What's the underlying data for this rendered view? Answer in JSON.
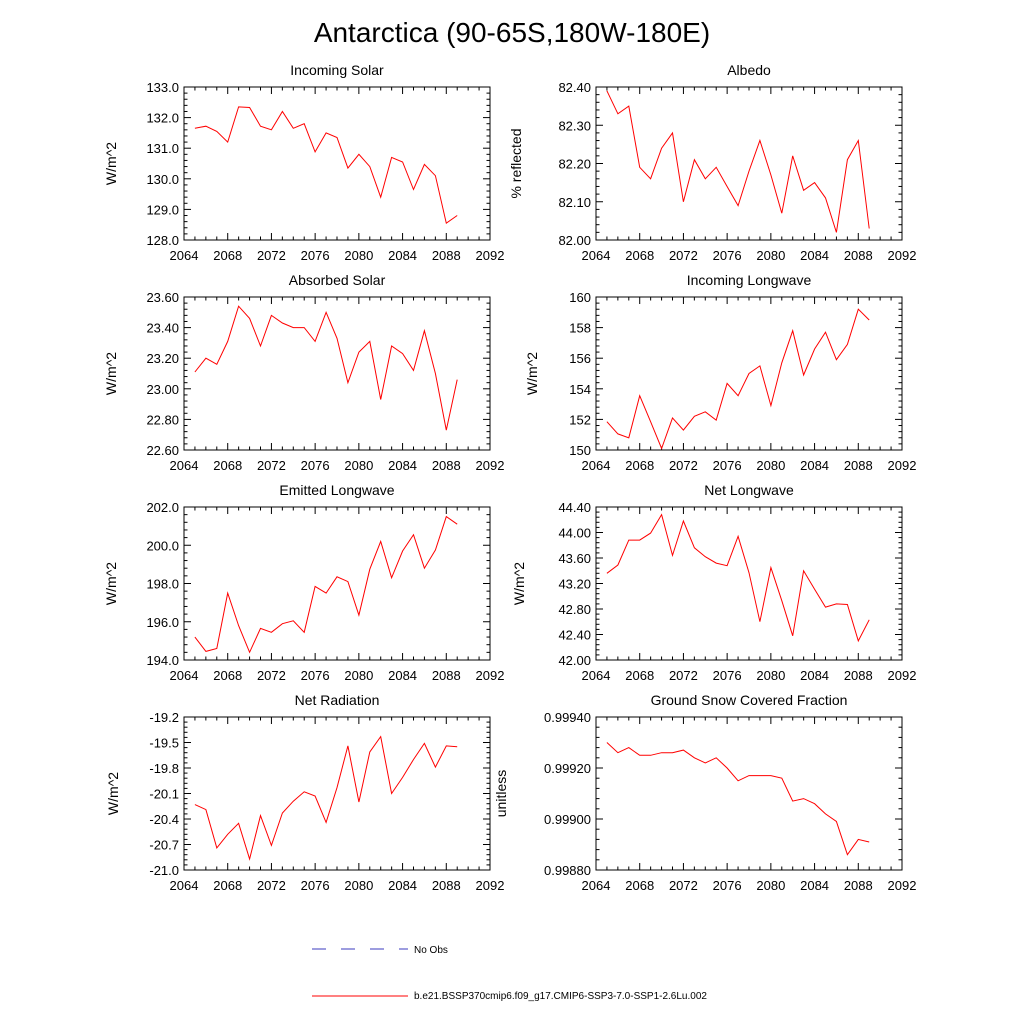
{
  "page_title": "Antarctica (90-65S,180W-180E)",
  "legend": {
    "obs_label": "No Obs",
    "model_label": "b.e21.BSSP370cmip6.f09_g17.CMIP6-SSP3-7.0-SSP1-2.6Lu.002",
    "obs_color": "#3b3bbf",
    "model_color": "#ff0000"
  },
  "chart_data": [
    {
      "type": "line",
      "title": "Incoming Solar",
      "ylabel": "W/m^2",
      "xlim": [
        2064,
        2092
      ],
      "xticks": [
        2064,
        2068,
        2072,
        2076,
        2080,
        2084,
        2088,
        2092
      ],
      "xtick_labels": [
        "2064",
        "2068",
        "2072",
        "2076",
        "2080",
        "2084",
        "2088",
        "2092"
      ],
      "ylim": [
        128.0,
        133.0
      ],
      "yticks": [
        128.0,
        129.0,
        130.0,
        131.0,
        132.0,
        133.0
      ],
      "ytick_labels": [
        "128.0",
        "129.0",
        "130.0",
        "131.0",
        "132.0",
        "133.0"
      ],
      "x": [
        2065,
        2066,
        2067,
        2068,
        2069,
        2070,
        2071,
        2072,
        2073,
        2074,
        2075,
        2076,
        2077,
        2078,
        2079,
        2080,
        2081,
        2082,
        2083,
        2084,
        2085,
        2086,
        2087,
        2088,
        2089
      ],
      "series": [
        {
          "values": [
            131.65,
            131.72,
            131.55,
            131.2,
            132.35,
            132.33,
            131.72,
            131.6,
            132.2,
            131.65,
            131.8,
            130.88,
            131.5,
            131.35,
            130.35,
            130.8,
            130.4,
            129.4,
            130.7,
            130.55,
            129.65,
            130.47,
            130.1,
            128.55,
            128.8
          ]
        }
      ]
    },
    {
      "type": "line",
      "title": "Albedo",
      "ylabel": "% reflected",
      "xlim": [
        2064,
        2092
      ],
      "xticks": [
        2064,
        2068,
        2072,
        2076,
        2080,
        2084,
        2088,
        2092
      ],
      "xtick_labels": [
        "2064",
        "2068",
        "2072",
        "2076",
        "2080",
        "2084",
        "2088",
        "2092"
      ],
      "ylim": [
        82.0,
        82.4
      ],
      "yticks": [
        82.0,
        82.1,
        82.2,
        82.3,
        82.4
      ],
      "ytick_labels": [
        "82.00",
        "82.10",
        "82.20",
        "82.30",
        "82.40"
      ],
      "x": [
        2065,
        2066,
        2067,
        2068,
        2069,
        2070,
        2071,
        2072,
        2073,
        2074,
        2075,
        2076,
        2077,
        2078,
        2079,
        2080,
        2081,
        2082,
        2083,
        2084,
        2085,
        2086,
        2087,
        2088,
        2089
      ],
      "series": [
        {
          "values": [
            82.39,
            82.33,
            82.35,
            82.19,
            82.16,
            82.24,
            82.28,
            82.1,
            82.21,
            82.16,
            82.19,
            82.14,
            82.09,
            82.18,
            82.26,
            82.17,
            82.07,
            82.22,
            82.13,
            82.15,
            82.11,
            82.02,
            82.21,
            82.26,
            82.03
          ]
        }
      ]
    },
    {
      "type": "line",
      "title": "Absorbed Solar",
      "ylabel": "W/m^2",
      "xlim": [
        2064,
        2092
      ],
      "xticks": [
        2064,
        2068,
        2072,
        2076,
        2080,
        2084,
        2088,
        2092
      ],
      "xtick_labels": [
        "2064",
        "2068",
        "2072",
        "2076",
        "2080",
        "2084",
        "2088",
        "2092"
      ],
      "ylim": [
        22.6,
        23.6
      ],
      "yticks": [
        22.6,
        22.8,
        23.0,
        23.2,
        23.4,
        23.6
      ],
      "ytick_labels": [
        "22.60",
        "22.80",
        "23.00",
        "23.20",
        "23.40",
        "23.60"
      ],
      "x": [
        2065,
        2066,
        2067,
        2068,
        2069,
        2070,
        2071,
        2072,
        2073,
        2074,
        2075,
        2076,
        2077,
        2078,
        2079,
        2080,
        2081,
        2082,
        2083,
        2084,
        2085,
        2086,
        2087,
        2088,
        2089
      ],
      "series": [
        {
          "values": [
            23.11,
            23.2,
            23.16,
            23.31,
            23.54,
            23.46,
            23.28,
            23.48,
            23.43,
            23.4,
            23.4,
            23.31,
            23.5,
            23.33,
            23.04,
            23.24,
            23.31,
            22.93,
            23.28,
            23.23,
            23.12,
            23.38,
            23.1,
            22.73,
            23.06
          ]
        }
      ]
    },
    {
      "type": "line",
      "title": "Incoming Longwave",
      "ylabel": "W/m^2",
      "xlim": [
        2064,
        2092
      ],
      "xticks": [
        2064,
        2068,
        2072,
        2076,
        2080,
        2084,
        2088,
        2092
      ],
      "xtick_labels": [
        "2064",
        "2068",
        "2072",
        "2076",
        "2080",
        "2084",
        "2088",
        "2092"
      ],
      "ylim": [
        150,
        160
      ],
      "yticks": [
        150,
        152,
        154,
        156,
        158,
        160
      ],
      "ytick_labels": [
        "150",
        "152",
        "154",
        "156",
        "158",
        "160"
      ],
      "x": [
        2065,
        2066,
        2067,
        2068,
        2069,
        2070,
        2071,
        2072,
        2073,
        2074,
        2075,
        2076,
        2077,
        2078,
        2079,
        2080,
        2081,
        2082,
        2083,
        2084,
        2085,
        2086,
        2087,
        2088,
        2089
      ],
      "series": [
        {
          "values": [
            151.85,
            151.05,
            150.8,
            153.55,
            151.85,
            150.1,
            152.1,
            151.3,
            152.2,
            152.5,
            151.95,
            154.35,
            153.55,
            155.0,
            155.5,
            152.9,
            155.7,
            157.8,
            154.9,
            156.6,
            157.7,
            155.9,
            156.9,
            159.2,
            158.5
          ]
        }
      ]
    },
    {
      "type": "line",
      "title": "Emitted Longwave",
      "ylabel": "W/m^2",
      "xlim": [
        2064,
        2092
      ],
      "xticks": [
        2064,
        2068,
        2072,
        2076,
        2080,
        2084,
        2088,
        2092
      ],
      "xtick_labels": [
        "2064",
        "2068",
        "2072",
        "2076",
        "2080",
        "2084",
        "2088",
        "2092"
      ],
      "ylim": [
        194.0,
        202.0
      ],
      "yticks": [
        194.0,
        196.0,
        198.0,
        200.0,
        202.0
      ],
      "ytick_labels": [
        "194.0",
        "196.0",
        "198.0",
        "200.0",
        "202.0"
      ],
      "x": [
        2065,
        2066,
        2067,
        2068,
        2069,
        2070,
        2071,
        2072,
        2073,
        2074,
        2075,
        2076,
        2077,
        2078,
        2079,
        2080,
        2081,
        2082,
        2083,
        2084,
        2085,
        2086,
        2087,
        2088,
        2089
      ],
      "series": [
        {
          "values": [
            195.2,
            194.45,
            194.6,
            197.5,
            195.8,
            194.4,
            195.65,
            195.45,
            195.9,
            196.05,
            195.45,
            197.85,
            197.5,
            198.35,
            198.1,
            196.35,
            198.75,
            200.2,
            198.3,
            199.7,
            200.55,
            198.8,
            199.75,
            201.5,
            201.1
          ]
        }
      ]
    },
    {
      "type": "line",
      "title": "Net Longwave",
      "ylabel": "W/m^2",
      "xlim": [
        2064,
        2092
      ],
      "xticks": [
        2064,
        2068,
        2072,
        2076,
        2080,
        2084,
        2088,
        2092
      ],
      "xtick_labels": [
        "2064",
        "2068",
        "2072",
        "2076",
        "2080",
        "2084",
        "2088",
        "2092"
      ],
      "ylim": [
        42.0,
        44.4
      ],
      "yticks": [
        42.0,
        42.4,
        42.8,
        43.2,
        43.6,
        44.0,
        44.4
      ],
      "ytick_labels": [
        "42.00",
        "42.40",
        "42.80",
        "43.20",
        "43.60",
        "44.00",
        "44.40"
      ],
      "x": [
        2065,
        2066,
        2067,
        2068,
        2069,
        2070,
        2071,
        2072,
        2073,
        2074,
        2075,
        2076,
        2077,
        2078,
        2079,
        2080,
        2081,
        2082,
        2083,
        2084,
        2085,
        2086,
        2087,
        2088,
        2089
      ],
      "series": [
        {
          "values": [
            43.36,
            43.49,
            43.88,
            43.88,
            43.99,
            44.28,
            43.64,
            44.18,
            43.76,
            43.62,
            43.52,
            43.48,
            43.94,
            43.37,
            42.6,
            43.45,
            42.93,
            42.38,
            43.4,
            43.11,
            42.83,
            42.88,
            42.87,
            42.3,
            42.63
          ]
        }
      ]
    },
    {
      "type": "line",
      "title": "Net Radiation",
      "ylabel": "W/m^2",
      "xlim": [
        2064,
        2092
      ],
      "xticks": [
        2064,
        2068,
        2072,
        2076,
        2080,
        2084,
        2088,
        2092
      ],
      "xtick_labels": [
        "2064",
        "2068",
        "2072",
        "2076",
        "2080",
        "2084",
        "2088",
        "2092"
      ],
      "ylim": [
        -21.0,
        -19.2
      ],
      "yticks": [
        -21.0,
        -20.7,
        -20.4,
        -20.1,
        -19.8,
        -19.5,
        -19.2
      ],
      "ytick_labels": [
        "-21.0",
        "-20.7",
        "-20.4",
        "-20.1",
        "-19.8",
        "-19.5",
        "-19.2"
      ],
      "x": [
        2065,
        2066,
        2067,
        2068,
        2069,
        2070,
        2071,
        2072,
        2073,
        2074,
        2075,
        2076,
        2077,
        2078,
        2079,
        2080,
        2081,
        2082,
        2083,
        2084,
        2085,
        2086,
        2087,
        2088,
        2089
      ],
      "series": [
        {
          "values": [
            -20.23,
            -20.29,
            -20.74,
            -20.58,
            -20.45,
            -20.87,
            -20.36,
            -20.71,
            -20.33,
            -20.19,
            -20.08,
            -20.13,
            -20.44,
            -20.03,
            -19.54,
            -20.2,
            -19.61,
            -19.43,
            -20.1,
            -19.91,
            -19.7,
            -19.51,
            -19.79,
            -19.54,
            -19.55
          ]
        }
      ]
    },
    {
      "type": "line",
      "title": "Ground Snow Covered Fraction",
      "ylabel": "unitless",
      "xlim": [
        2064,
        2092
      ],
      "xticks": [
        2064,
        2068,
        2072,
        2076,
        2080,
        2084,
        2088,
        2092
      ],
      "xtick_labels": [
        "2064",
        "2068",
        "2072",
        "2076",
        "2080",
        "2084",
        "2088",
        "2092"
      ],
      "ylim": [
        0.9988,
        0.9994
      ],
      "yticks": [
        0.9988,
        0.999,
        0.9992,
        0.9994
      ],
      "ytick_labels": [
        "0.99880",
        "0.99900",
        "0.99920",
        "0.99940"
      ],
      "x": [
        2065,
        2066,
        2067,
        2068,
        2069,
        2070,
        2071,
        2072,
        2073,
        2074,
        2075,
        2076,
        2077,
        2078,
        2079,
        2080,
        2081,
        2082,
        2083,
        2084,
        2085,
        2086,
        2087,
        2088,
        2089
      ],
      "series": [
        {
          "values": [
            0.9993,
            0.99926,
            0.99928,
            0.99925,
            0.99925,
            0.99926,
            0.99926,
            0.99927,
            0.99924,
            0.99922,
            0.99924,
            0.9992,
            0.99915,
            0.99917,
            0.99917,
            0.99917,
            0.99916,
            0.99907,
            0.99908,
            0.99906,
            0.99902,
            0.99899,
            0.99886,
            0.99892,
            0.99891
          ]
        }
      ]
    }
  ]
}
